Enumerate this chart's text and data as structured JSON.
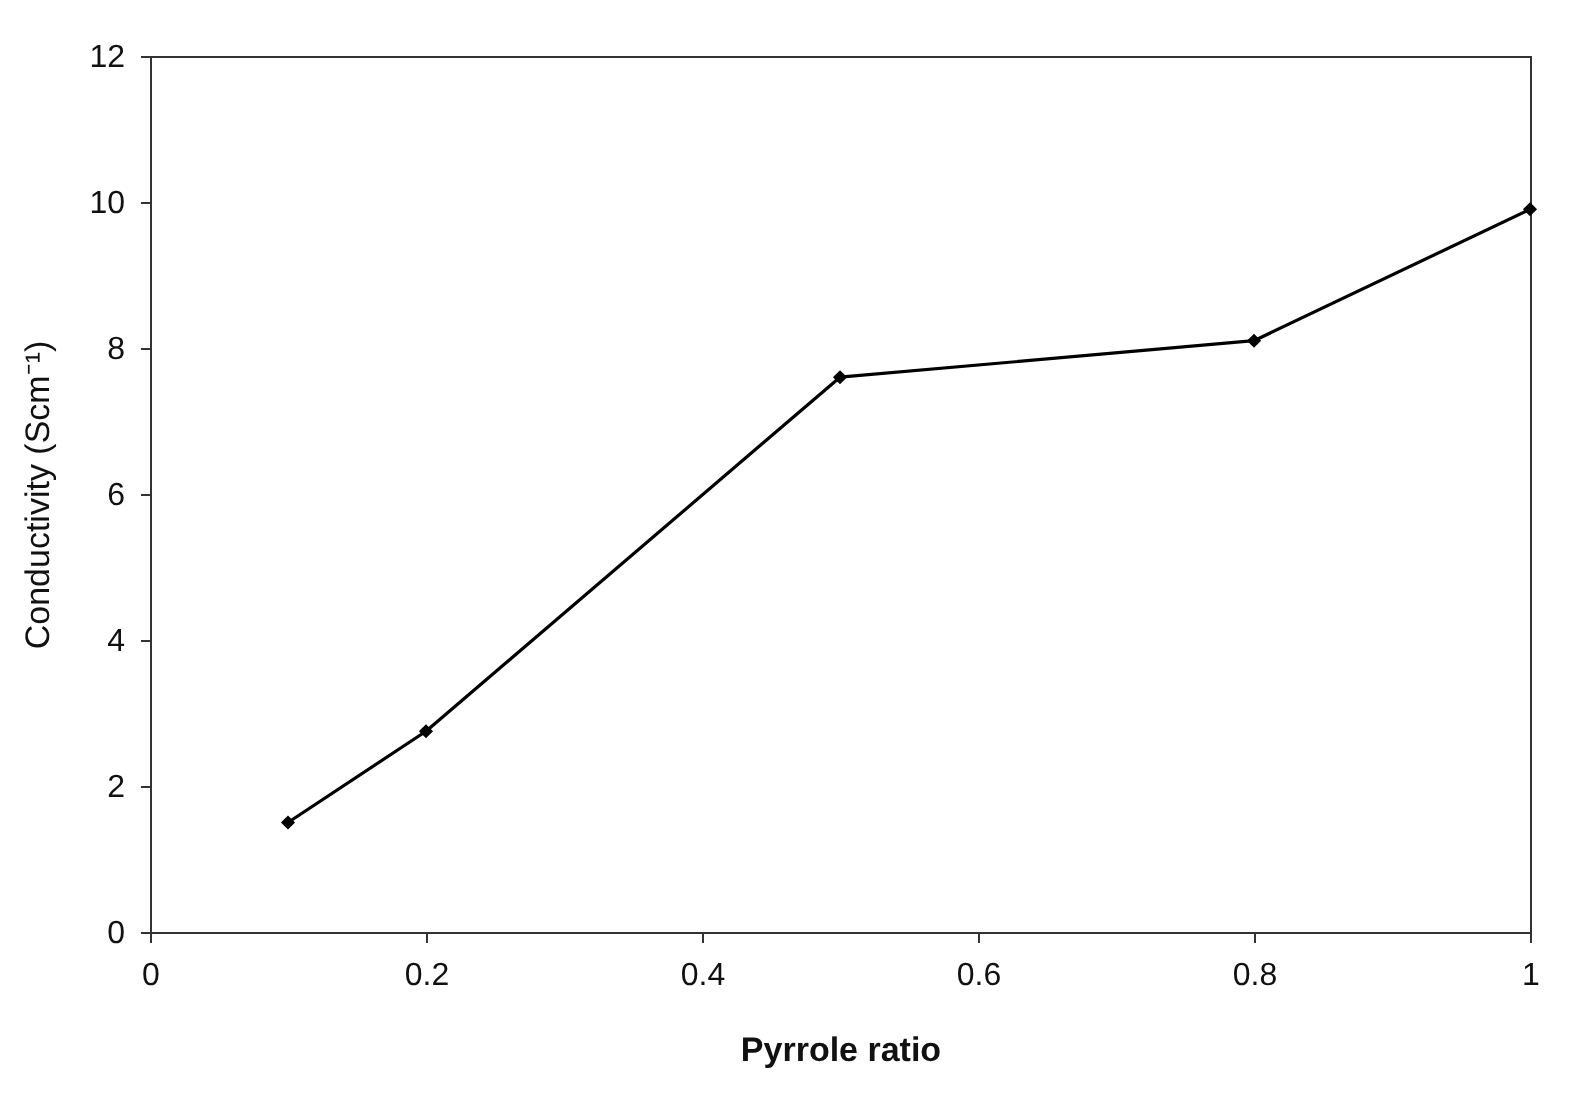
{
  "chart_data": {
    "type": "line",
    "xlabel": "Pyrrole ratio",
    "ylabel": "Conductivity (Scm⁻¹)",
    "x": [
      0.1,
      0.2,
      0.5,
      0.8,
      1.0
    ],
    "series": [
      {
        "color": "#000000",
        "values": [
          1.5,
          2.75,
          7.6,
          8.1,
          9.9
        ]
      }
    ],
    "xlim": [
      0,
      1
    ],
    "xticks": [
      0,
      0.2,
      0.4,
      0.6,
      0.8,
      1
    ],
    "ylim": [
      0,
      12
    ],
    "yticks": [
      0,
      2,
      4,
      6,
      8,
      10,
      12
    ],
    "grid": false,
    "marker": "diamond",
    "line_style": "solid"
  }
}
